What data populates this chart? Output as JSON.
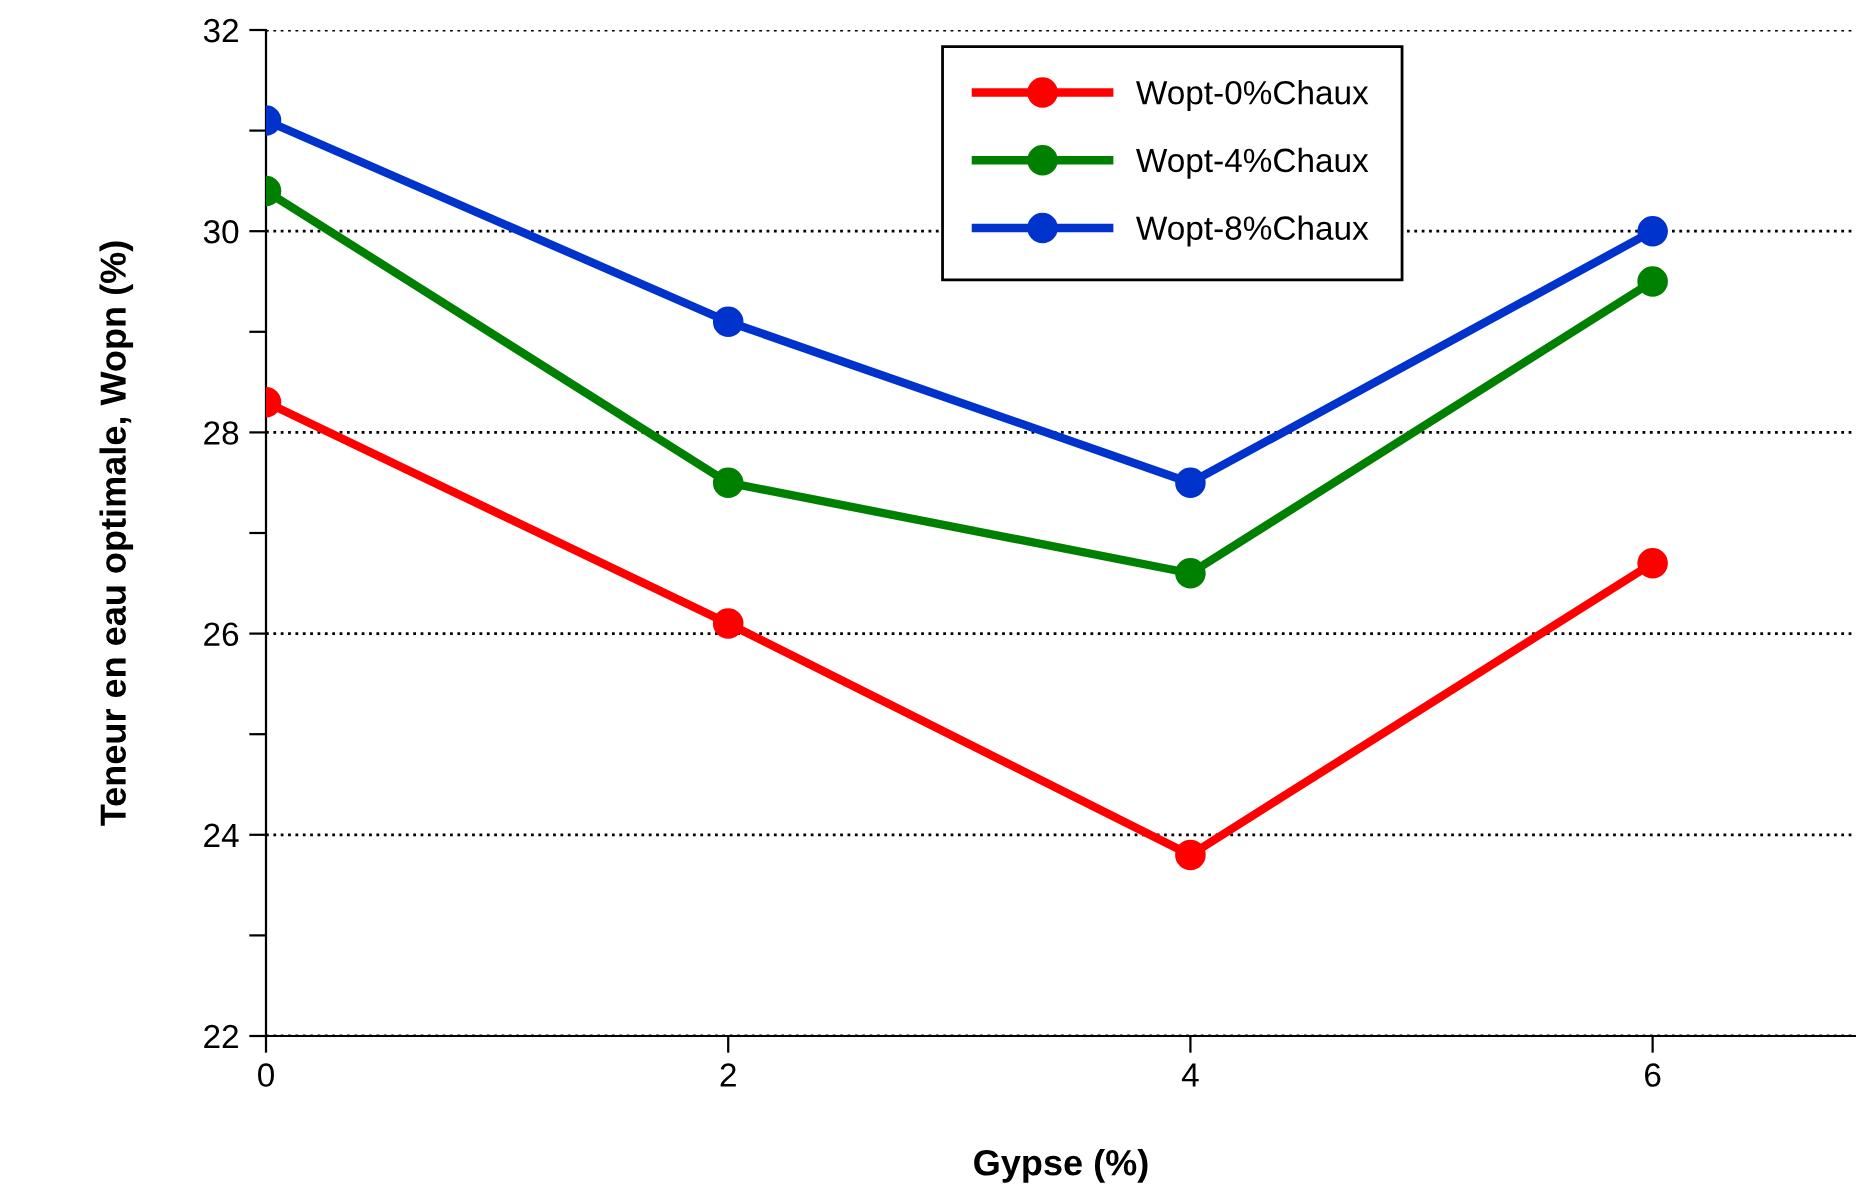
{
  "chart_data": {
    "type": "line",
    "xlabel": "Gypse (%)",
    "ylabel": "Teneur en eau optimale, Wopn (%)",
    "x": [
      0,
      2,
      4,
      6
    ],
    "series": [
      {
        "name": "Wopt-0%Chaux",
        "color": "#ff0000",
        "values": [
          28.3,
          26.1,
          23.8,
          26.7
        ]
      },
      {
        "name": "Wopt-4%Chaux",
        "color": "#008000",
        "values": [
          30.4,
          27.5,
          26.6,
          29.5
        ]
      },
      {
        "name": "Wopt-8%Chaux",
        "color": "#0033cc",
        "values": [
          31.1,
          29.1,
          27.5,
          30.0
        ]
      }
    ],
    "xlim": [
      0,
      6.88
    ],
    "xticks": [
      0,
      2,
      4,
      6
    ],
    "ylim": [
      22,
      32
    ],
    "yticks": [
      22,
      {
        "value": 23,
        "label": null
      },
      24,
      {
        "value": 25,
        "label": null
      },
      26,
      {
        "value": 27,
        "label": null
      },
      28,
      {
        "value": 29,
        "label": null
      },
      30,
      {
        "value": 31,
        "label": null
      },
      32
    ],
    "grid": "y",
    "legend": "top",
    "marker": "circle",
    "line_style": "solid"
  }
}
